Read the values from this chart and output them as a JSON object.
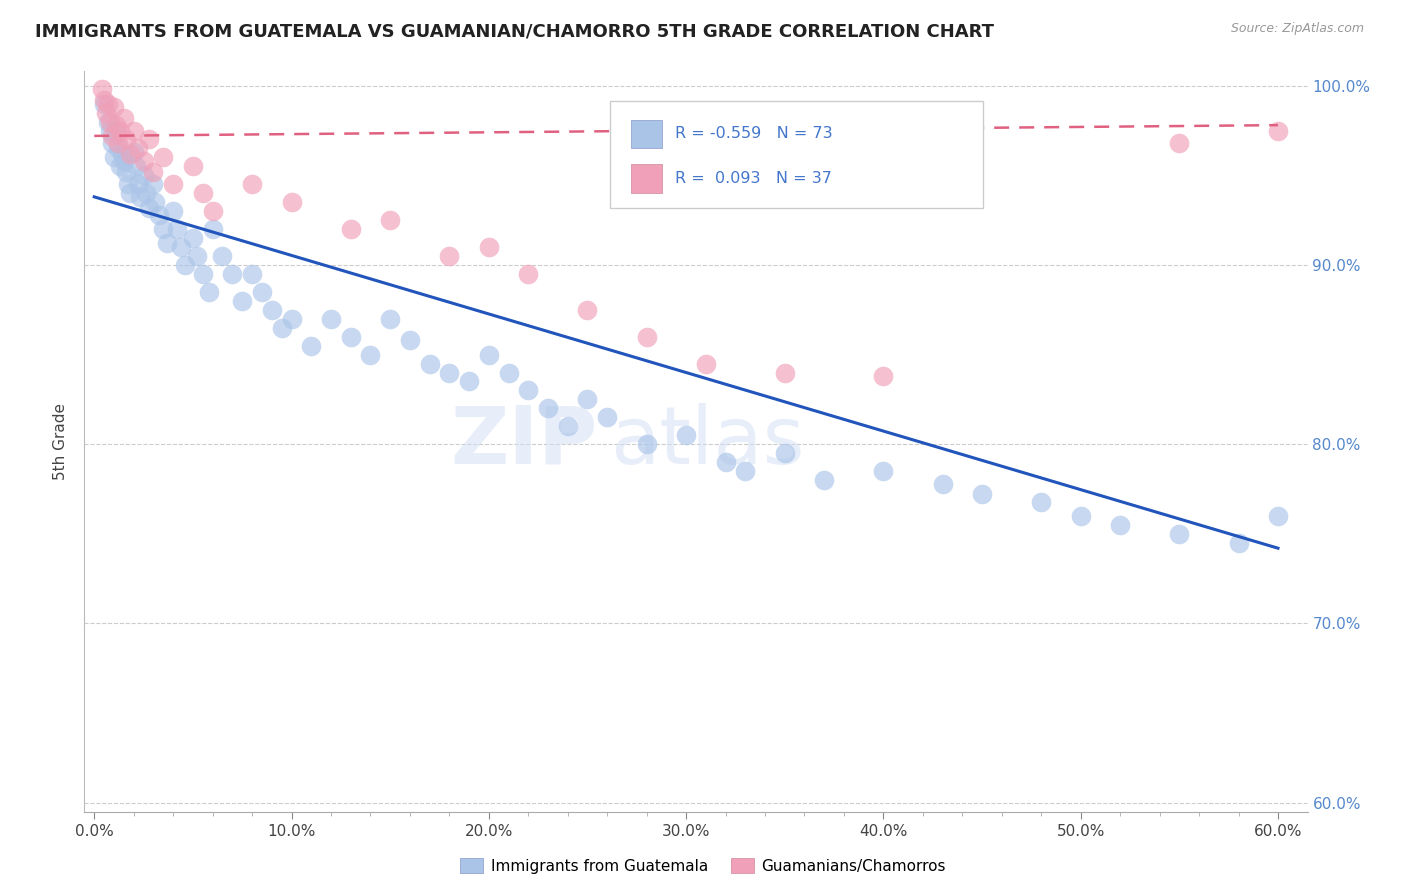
{
  "title": "IMMIGRANTS FROM GUATEMALA VS GUAMANIAN/CHAMORRO 5TH GRADE CORRELATION CHART",
  "source_text": "Source: ZipAtlas.com",
  "ylabel": "5th Grade",
  "xlim": [
    -0.005,
    0.615
  ],
  "ylim": [
    0.595,
    1.008
  ],
  "xtick_labels": [
    "0.0%",
    "10.0%",
    "20.0%",
    "30.0%",
    "40.0%",
    "50.0%",
    "60.0%"
  ],
  "xtick_vals": [
    0.0,
    0.1,
    0.2,
    0.3,
    0.4,
    0.5,
    0.6
  ],
  "ytick_labels": [
    "60.0%",
    "70.0%",
    "80.0%",
    "90.0%",
    "100.0%"
  ],
  "ytick_vals": [
    0.6,
    0.7,
    0.8,
    0.9,
    1.0
  ],
  "blue_color": "#aac4e8",
  "pink_color": "#f0a0b8",
  "blue_line_color": "#2255bb",
  "pink_line_color": "#e06080",
  "R_blue": -0.559,
  "N_blue": 73,
  "R_pink": 0.093,
  "N_pink": 37,
  "legend_label_blue": "Immigrants from Guatemala",
  "legend_label_pink": "Guamanians/Chamorros",
  "watermark_zip": "ZIP",
  "watermark_atlas": "atlas",
  "blue_line_x0": 0.0,
  "blue_line_y0": 0.938,
  "blue_line_x1": 0.6,
  "blue_line_y1": 0.742,
  "pink_line_x0": 0.0,
  "pink_line_y0": 0.972,
  "pink_line_x1": 0.6,
  "pink_line_y1": 0.978,
  "blue_scatter_x": [
    0.005,
    0.007,
    0.008,
    0.009,
    0.01,
    0.011,
    0.012,
    0.013,
    0.014,
    0.015,
    0.016,
    0.017,
    0.018,
    0.02,
    0.021,
    0.022,
    0.023,
    0.025,
    0.026,
    0.028,
    0.03,
    0.031,
    0.033,
    0.035,
    0.037,
    0.04,
    0.042,
    0.044,
    0.046,
    0.05,
    0.052,
    0.055,
    0.058,
    0.06,
    0.065,
    0.07,
    0.075,
    0.08,
    0.085,
    0.09,
    0.095,
    0.1,
    0.11,
    0.12,
    0.13,
    0.14,
    0.15,
    0.16,
    0.17,
    0.18,
    0.19,
    0.2,
    0.21,
    0.22,
    0.23,
    0.24,
    0.25,
    0.26,
    0.28,
    0.3,
    0.32,
    0.33,
    0.35,
    0.37,
    0.4,
    0.43,
    0.45,
    0.48,
    0.5,
    0.52,
    0.55,
    0.58,
    0.6
  ],
  "blue_scatter_y": [
    0.99,
    0.98,
    0.975,
    0.968,
    0.96,
    0.975,
    0.965,
    0.955,
    0.962,
    0.958,
    0.952,
    0.945,
    0.94,
    0.963,
    0.955,
    0.945,
    0.938,
    0.95,
    0.94,
    0.932,
    0.945,
    0.935,
    0.928,
    0.92,
    0.912,
    0.93,
    0.92,
    0.91,
    0.9,
    0.915,
    0.905,
    0.895,
    0.885,
    0.92,
    0.905,
    0.895,
    0.88,
    0.895,
    0.885,
    0.875,
    0.865,
    0.87,
    0.855,
    0.87,
    0.86,
    0.85,
    0.87,
    0.858,
    0.845,
    0.84,
    0.835,
    0.85,
    0.84,
    0.83,
    0.82,
    0.81,
    0.825,
    0.815,
    0.8,
    0.805,
    0.79,
    0.785,
    0.795,
    0.78,
    0.785,
    0.778,
    0.772,
    0.768,
    0.76,
    0.755,
    0.75,
    0.745,
    0.76
  ],
  "pink_scatter_x": [
    0.004,
    0.005,
    0.006,
    0.007,
    0.008,
    0.009,
    0.01,
    0.011,
    0.012,
    0.013,
    0.015,
    0.016,
    0.018,
    0.02,
    0.022,
    0.025,
    0.028,
    0.03,
    0.035,
    0.04,
    0.05,
    0.055,
    0.06,
    0.08,
    0.1,
    0.13,
    0.15,
    0.18,
    0.2,
    0.22,
    0.25,
    0.28,
    0.31,
    0.35,
    0.4,
    0.55,
    0.6
  ],
  "pink_scatter_y": [
    0.998,
    0.992,
    0.985,
    0.99,
    0.98,
    0.972,
    0.988,
    0.978,
    0.968,
    0.975,
    0.982,
    0.97,
    0.962,
    0.975,
    0.965,
    0.958,
    0.97,
    0.952,
    0.96,
    0.945,
    0.955,
    0.94,
    0.93,
    0.945,
    0.935,
    0.92,
    0.925,
    0.905,
    0.91,
    0.895,
    0.875,
    0.86,
    0.845,
    0.84,
    0.838,
    0.968,
    0.975
  ]
}
